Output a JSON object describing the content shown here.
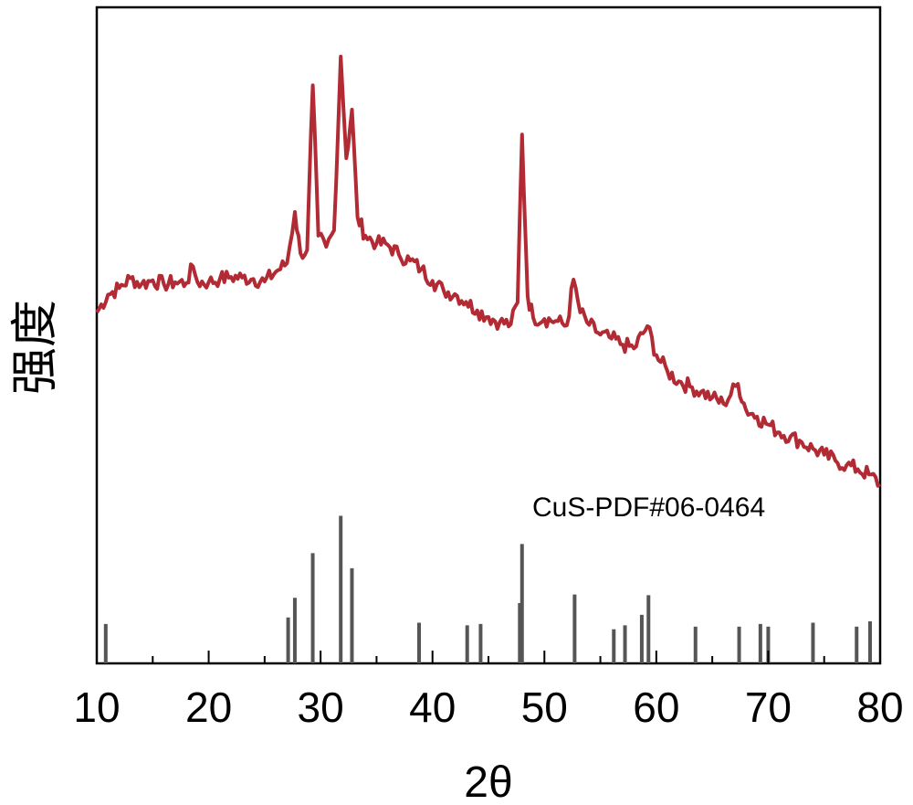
{
  "chart_data": {
    "type": "line",
    "title": "",
    "xlabel": "2θ",
    "ylabel": "强度",
    "xlim": [
      10,
      80
    ],
    "ylim": [
      0,
      100
    ],
    "x_ticks": [
      "10",
      "20",
      "30",
      "40",
      "50",
      "60",
      "70",
      "80"
    ],
    "grid": false,
    "y_ticks_shown": false,
    "series": [
      {
        "color": "#b22a33",
        "kind": "xrd-pattern",
        "points": [
          [
            10,
            53.5
          ],
          [
            11,
            56.2
          ],
          [
            12,
            57.2
          ],
          [
            13,
            58.7
          ],
          [
            14,
            57.8
          ],
          [
            15,
            58.4
          ],
          [
            16,
            57.8
          ],
          [
            17,
            58.1
          ],
          [
            18,
            58.0
          ],
          [
            18.6,
            60.5
          ],
          [
            19,
            58.1
          ],
          [
            20,
            58.1
          ],
          [
            21,
            58.6
          ],
          [
            22,
            58.9
          ],
          [
            23,
            58.8
          ],
          [
            24,
            58.6
          ],
          [
            25,
            58.2
          ],
          [
            26,
            59.7
          ],
          [
            27,
            61.0
          ],
          [
            27.7,
            68.8
          ],
          [
            28.2,
            62.5
          ],
          [
            28.8,
            63.0
          ],
          [
            29.3,
            88.1
          ],
          [
            29.8,
            65.2
          ],
          [
            30.5,
            63.5
          ],
          [
            31.2,
            66.0
          ],
          [
            31.8,
            92.5
          ],
          [
            32.3,
            77.0
          ],
          [
            32.8,
            84.4
          ],
          [
            33.3,
            68.0
          ],
          [
            34,
            65.2
          ],
          [
            35,
            64.0
          ],
          [
            36,
            63.8
          ],
          [
            37,
            62.3
          ],
          [
            38,
            61.4
          ],
          [
            39,
            60.1
          ],
          [
            40,
            58.3
          ],
          [
            41,
            56.8
          ],
          [
            42,
            56.3
          ],
          [
            43,
            55.1
          ],
          [
            44,
            53.8
          ],
          [
            45,
            52.8
          ],
          [
            46,
            52.0
          ],
          [
            47,
            51.7
          ],
          [
            47.6,
            55.0
          ],
          [
            48.0,
            80.6
          ],
          [
            48.5,
            56.0
          ],
          [
            49,
            52.7
          ],
          [
            50,
            52.5
          ],
          [
            51,
            52.2
          ],
          [
            52,
            51.5
          ],
          [
            52.6,
            58.5
          ],
          [
            53.2,
            53.5
          ],
          [
            54,
            51.6
          ],
          [
            55,
            50.1
          ],
          [
            56,
            49.5
          ],
          [
            57,
            48.6
          ],
          [
            58,
            48.0
          ],
          [
            59.2,
            51.4
          ],
          [
            60,
            47.0
          ],
          [
            61,
            44.5
          ],
          [
            62,
            43.0
          ],
          [
            63,
            42.2
          ],
          [
            64,
            41.4
          ],
          [
            65,
            40.5
          ],
          [
            66,
            39.6
          ],
          [
            67.3,
            42.6
          ],
          [
            68,
            38.7
          ],
          [
            69,
            37.6
          ],
          [
            70,
            36.4
          ],
          [
            71,
            35.2
          ],
          [
            72,
            34.6
          ],
          [
            73,
            33.7
          ],
          [
            74,
            32.7
          ],
          [
            75,
            31.8
          ],
          [
            76,
            30.9
          ],
          [
            77,
            30.2
          ],
          [
            78,
            29.6
          ],
          [
            79,
            28.8
          ],
          [
            80,
            27.3
          ]
        ]
      }
    ],
    "reference": {
      "label": "CuS-PDF#06-0464",
      "color": "#555555",
      "peaks": [
        [
          10.8,
          6
        ],
        [
          27.1,
          7
        ],
        [
          27.7,
          10
        ],
        [
          29.3,
          16.8
        ],
        [
          31.8,
          22.5
        ],
        [
          32.8,
          14.5
        ],
        [
          38.8,
          6.2
        ],
        [
          43.1,
          5.8
        ],
        [
          44.3,
          6.0
        ],
        [
          47.8,
          9.2
        ],
        [
          48.0,
          18.2
        ],
        [
          52.7,
          10.5
        ],
        [
          56.2,
          5.2
        ],
        [
          57.2,
          5.8
        ],
        [
          58.7,
          7.4
        ],
        [
          59.3,
          10.4
        ],
        [
          63.5,
          5.6
        ],
        [
          67.4,
          5.6
        ],
        [
          69.3,
          6.0
        ],
        [
          70.0,
          5.6
        ],
        [
          74.0,
          6.2
        ],
        [
          77.9,
          5.6
        ],
        [
          79.1,
          6.4
        ]
      ]
    }
  }
}
